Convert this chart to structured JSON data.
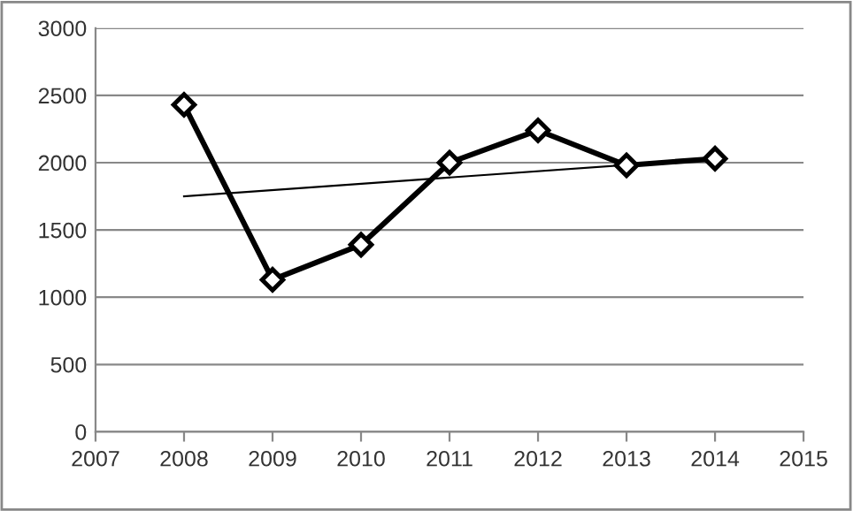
{
  "chart_data": {
    "type": "line",
    "xlim": [
      2007,
      2015
    ],
    "xticks": [
      2007,
      2008,
      2009,
      2010,
      2011,
      2012,
      2013,
      2014,
      2015
    ],
    "ylim": [
      0,
      3000
    ],
    "yticks": [
      0,
      500,
      1000,
      1500,
      2000,
      2500,
      3000
    ],
    "grid": "y",
    "legend": false,
    "marker": "diamond",
    "line_style": "solid",
    "series": [
      {
        "color": "#000000",
        "x": [
          2008,
          2009,
          2010,
          2011,
          2012,
          2013,
          2014
        ],
        "values": [
          2430,
          1130,
          1390,
          2000,
          2240,
          1980,
          2030
        ]
      },
      {
        "color": "#000000",
        "marker": "none",
        "x": [
          2008,
          2014
        ],
        "values": [
          1750,
          2030
        ]
      }
    ]
  }
}
